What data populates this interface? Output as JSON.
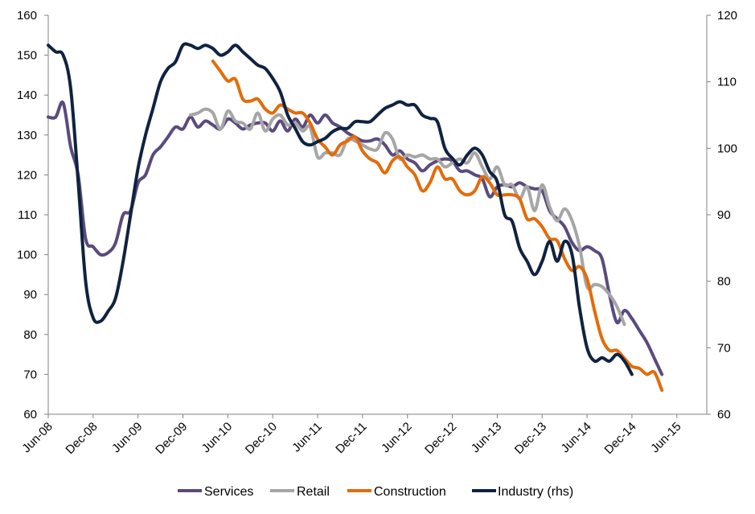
{
  "chart_data": {
    "type": "line",
    "x_tick_labels": [
      "Jun-08",
      "Dec-08",
      "Jun-09",
      "Dec-09",
      "Jun-10",
      "Dec-10",
      "Jun-11",
      "Dec-11",
      "Jun-12",
      "Dec-12",
      "Jun-13",
      "Dec-13",
      "Jun-14",
      "Dec-14",
      "Jun-15"
    ],
    "x_range": [
      "Jun-08",
      "Oct-15"
    ],
    "y_left": {
      "min": 60,
      "max": 160,
      "step": 10,
      "ticks": [
        "60",
        "70",
        "80",
        "90",
        "100",
        "110",
        "120",
        "130",
        "140",
        "150",
        "160"
      ]
    },
    "y_right": {
      "min": 60,
      "max": 120,
      "step": 10,
      "ticks": [
        "60",
        "70",
        "80",
        "90",
        "100",
        "110",
        "120"
      ]
    },
    "grid": false,
    "legend_position": "bottom",
    "series": [
      {
        "name": "Services",
        "color": "#5b4a7e",
        "axis": "left",
        "points": [
          [
            "Jun-08",
            134.5
          ],
          [
            "Jul-08",
            134.5
          ],
          [
            "Aug-08",
            138
          ],
          [
            "Sep-08",
            127
          ],
          [
            "Oct-08",
            120
          ],
          [
            "Nov-08",
            104
          ],
          [
            "Dec-08",
            102
          ],
          [
            "Jan-09",
            100
          ],
          [
            "Feb-09",
            100.5
          ],
          [
            "Mar-09",
            103
          ],
          [
            "Apr-09",
            110
          ],
          [
            "May-09",
            111
          ],
          [
            "Jun-09",
            118
          ],
          [
            "Jul-09",
            120
          ],
          [
            "Aug-09",
            125
          ],
          [
            "Sep-09",
            127
          ],
          [
            "Oct-09",
            129.5
          ],
          [
            "Nov-09",
            132
          ],
          [
            "Dec-09",
            131.5
          ],
          [
            "Jan-10",
            134.5
          ],
          [
            "Feb-10",
            132
          ],
          [
            "Mar-10",
            133.5
          ],
          [
            "Apr-10",
            132.5
          ],
          [
            "May-10",
            131.5
          ],
          [
            "Jun-10",
            134
          ],
          [
            "Jul-10",
            133
          ],
          [
            "Aug-10",
            131.5
          ],
          [
            "Sep-10",
            132.5
          ],
          [
            "Oct-10",
            133
          ],
          [
            "Nov-10",
            133
          ],
          [
            "Dec-10",
            131
          ],
          [
            "Jan-11",
            133.5
          ],
          [
            "Feb-11",
            131
          ],
          [
            "Mar-11",
            134
          ],
          [
            "Apr-11",
            132
          ],
          [
            "May-11",
            135
          ],
          [
            "Jun-11",
            133
          ],
          [
            "Jul-11",
            135
          ],
          [
            "Aug-11",
            133
          ],
          [
            "Sep-11",
            132
          ],
          [
            "Oct-11",
            130.5
          ],
          [
            "Nov-11",
            129.5
          ],
          [
            "Dec-11",
            128.5
          ],
          [
            "Jan-12",
            128.5
          ],
          [
            "Feb-12",
            129
          ],
          [
            "Mar-12",
            127.5
          ],
          [
            "Apr-12",
            125
          ],
          [
            "May-12",
            126
          ],
          [
            "Jun-12",
            124
          ],
          [
            "Jul-12",
            123
          ],
          [
            "Aug-12",
            121
          ],
          [
            "Sep-12",
            122.5
          ],
          [
            "Oct-12",
            123.5
          ],
          [
            "Nov-12",
            124
          ],
          [
            "Dec-12",
            123.5
          ],
          [
            "Jan-13",
            121
          ],
          [
            "Feb-13",
            121
          ],
          [
            "Mar-13",
            120
          ],
          [
            "Apr-13",
            119
          ],
          [
            "May-13",
            114.5
          ],
          [
            "Jun-13",
            117
          ],
          [
            "Jul-13",
            117.5
          ],
          [
            "Aug-13",
            117
          ],
          [
            "Sep-13",
            118
          ],
          [
            "Oct-13",
            117
          ],
          [
            "Nov-13",
            116.5
          ],
          [
            "Dec-13",
            116
          ],
          [
            "Jan-14",
            111
          ],
          [
            "Feb-14",
            109
          ],
          [
            "Mar-14",
            107
          ],
          [
            "Apr-14",
            103
          ],
          [
            "May-14",
            101
          ],
          [
            "Jun-14",
            102
          ],
          [
            "Jul-14",
            101
          ],
          [
            "Aug-14",
            99
          ],
          [
            "Sep-14",
            90
          ],
          [
            "Oct-14",
            83
          ],
          [
            "Nov-14",
            86
          ],
          [
            "Dec-14",
            84
          ],
          [
            "Jan-15",
            81
          ],
          [
            "Feb-15",
            78
          ],
          [
            "Mar-15",
            74
          ],
          [
            "Apr-15",
            70
          ]
        ]
      },
      {
        "name": "Retail",
        "color": "#a6a6a6",
        "axis": "left",
        "points": [
          [
            "Jan-10",
            135
          ],
          [
            "Feb-10",
            135.5
          ],
          [
            "Mar-10",
            136.5
          ],
          [
            "Apr-10",
            135.5
          ],
          [
            "May-10",
            131.5
          ],
          [
            "Jun-10",
            136
          ],
          [
            "Jul-10",
            133.5
          ],
          [
            "Aug-10",
            133
          ],
          [
            "Sep-10",
            131.5
          ],
          [
            "Oct-10",
            135.5
          ],
          [
            "Nov-10",
            131
          ],
          [
            "Dec-10",
            134
          ],
          [
            "Jan-11",
            135
          ],
          [
            "Feb-11",
            132.5
          ],
          [
            "Mar-11",
            133
          ],
          [
            "Apr-11",
            131
          ],
          [
            "May-11",
            132
          ],
          [
            "Jun-11",
            124.5
          ],
          [
            "Jul-11",
            125.5
          ],
          [
            "Aug-11",
            125.5
          ],
          [
            "Sep-11",
            125
          ],
          [
            "Oct-11",
            129
          ],
          [
            "Nov-11",
            128.5
          ],
          [
            "Dec-11",
            127.5
          ],
          [
            "Jan-12",
            126.5
          ],
          [
            "Feb-12",
            126.5
          ],
          [
            "Mar-12",
            130.5
          ],
          [
            "Apr-12",
            129
          ],
          [
            "May-12",
            124
          ],
          [
            "Jun-12",
            125
          ],
          [
            "Jul-12",
            124.5
          ],
          [
            "Aug-12",
            125
          ],
          [
            "Sep-12",
            124
          ],
          [
            "Oct-12",
            124
          ],
          [
            "Nov-12",
            122
          ],
          [
            "Dec-12",
            123
          ],
          [
            "Jan-13",
            124
          ],
          [
            "Feb-13",
            123
          ],
          [
            "Mar-13",
            125.5
          ],
          [
            "Apr-13",
            122
          ],
          [
            "May-13",
            119
          ],
          [
            "Jun-13",
            122
          ],
          [
            "Jul-13",
            117.5
          ],
          [
            "Aug-13",
            117.5
          ],
          [
            "Sep-13",
            114
          ],
          [
            "Oct-13",
            117
          ],
          [
            "Nov-13",
            111
          ],
          [
            "Dec-13",
            117.5
          ],
          [
            "Jan-14",
            112
          ],
          [
            "Feb-14",
            108.5
          ],
          [
            "Mar-14",
            111.5
          ],
          [
            "Apr-14",
            108.5
          ],
          [
            "May-14",
            102
          ],
          [
            "Jun-14",
            92
          ],
          [
            "Jul-14",
            92.5
          ],
          [
            "Aug-14",
            92
          ],
          [
            "Sep-14",
            90
          ],
          [
            "Oct-14",
            87
          ],
          [
            "Nov-14",
            82.5
          ]
        ]
      },
      {
        "name": "Construction",
        "color": "#e36c0a",
        "axis": "left",
        "points": [
          [
            "Apr-10",
            148.5
          ],
          [
            "May-10",
            146
          ],
          [
            "Jun-10",
            143.5
          ],
          [
            "Jul-10",
            144
          ],
          [
            "Aug-10",
            139
          ],
          [
            "Sep-10",
            138.5
          ],
          [
            "Oct-10",
            139
          ],
          [
            "Nov-10",
            136.5
          ],
          [
            "Dec-10",
            135.5
          ],
          [
            "Jan-11",
            137.5
          ],
          [
            "Feb-11",
            136.5
          ],
          [
            "Mar-11",
            135.5
          ],
          [
            "Apr-11",
            135.5
          ],
          [
            "May-11",
            133
          ],
          [
            "Jun-11",
            129
          ],
          [
            "Jul-11",
            127
          ],
          [
            "Aug-11",
            125
          ],
          [
            "Sep-11",
            127.5
          ],
          [
            "Oct-11",
            128.5
          ],
          [
            "Nov-11",
            129.5
          ],
          [
            "Dec-11",
            126
          ],
          [
            "Jan-12",
            124
          ],
          [
            "Feb-12",
            123
          ],
          [
            "Mar-12",
            120.5
          ],
          [
            "Apr-12",
            123.5
          ],
          [
            "May-12",
            124.5
          ],
          [
            "Jun-12",
            122
          ],
          [
            "Jul-12",
            120
          ],
          [
            "Aug-12",
            116
          ],
          [
            "Sep-12",
            118
          ],
          [
            "Oct-12",
            122
          ],
          [
            "Nov-12",
            119
          ],
          [
            "Dec-12",
            119
          ],
          [
            "Jan-13",
            116
          ],
          [
            "Feb-13",
            115
          ],
          [
            "Mar-13",
            116
          ],
          [
            "Apr-13",
            119.5
          ],
          [
            "May-13",
            118
          ],
          [
            "Jun-13",
            115
          ],
          [
            "Jul-13",
            115
          ],
          [
            "Aug-13",
            115
          ],
          [
            "Sep-13",
            114
          ],
          [
            "Oct-13",
            109
          ],
          [
            "Nov-13",
            109
          ],
          [
            "Dec-13",
            107
          ],
          [
            "Jan-14",
            104
          ],
          [
            "Feb-14",
            103.5
          ],
          [
            "Mar-14",
            99
          ],
          [
            "Apr-14",
            96
          ],
          [
            "May-14",
            97
          ],
          [
            "Jun-14",
            94
          ],
          [
            "Jul-14",
            86
          ],
          [
            "Aug-14",
            79
          ],
          [
            "Sep-14",
            76
          ],
          [
            "Oct-14",
            76
          ],
          [
            "Nov-14",
            74
          ],
          [
            "Dec-14",
            72
          ],
          [
            "Jan-15",
            71.5
          ],
          [
            "Feb-15",
            70
          ],
          [
            "Mar-15",
            70.5
          ],
          [
            "Apr-15",
            66
          ]
        ]
      },
      {
        "name": "Industry (rhs)",
        "color": "#0f2340",
        "axis": "right",
        "points": [
          [
            "Jun-08",
            115.5
          ],
          [
            "Jul-08",
            114.5
          ],
          [
            "Aug-08",
            114
          ],
          [
            "Sep-08",
            109
          ],
          [
            "Oct-08",
            95
          ],
          [
            "Nov-08",
            80
          ],
          [
            "Dec-08",
            74.5
          ],
          [
            "Jan-09",
            74
          ],
          [
            "Feb-09",
            75.5
          ],
          [
            "Mar-09",
            77.5
          ],
          [
            "Apr-09",
            83
          ],
          [
            "May-09",
            90
          ],
          [
            "Jun-09",
            97
          ],
          [
            "Jul-09",
            102
          ],
          [
            "Aug-09",
            106
          ],
          [
            "Sep-09",
            110
          ],
          [
            "Oct-09",
            112
          ],
          [
            "Nov-09",
            113
          ],
          [
            "Dec-09",
            115.5
          ],
          [
            "Jan-10",
            115.5
          ],
          [
            "Feb-10",
            115
          ],
          [
            "Mar-10",
            115.5
          ],
          [
            "Apr-10",
            115
          ],
          [
            "May-10",
            114
          ],
          [
            "Jun-10",
            114.5
          ],
          [
            "Jul-10",
            115.5
          ],
          [
            "Aug-10",
            114.5
          ],
          [
            "Sep-10",
            113.5
          ],
          [
            "Oct-10",
            112.5
          ],
          [
            "Nov-10",
            112
          ],
          [
            "Dec-10",
            110.5
          ],
          [
            "Jan-11",
            108.5
          ],
          [
            "Feb-11",
            105
          ],
          [
            "Mar-11",
            103
          ],
          [
            "Apr-11",
            101
          ],
          [
            "May-11",
            100.5
          ],
          [
            "Jun-11",
            101
          ],
          [
            "Jul-11",
            101.5
          ],
          [
            "Aug-11",
            102.5
          ],
          [
            "Sep-11",
            103
          ],
          [
            "Oct-11",
            103
          ],
          [
            "Nov-11",
            104
          ],
          [
            "Dec-11",
            104
          ],
          [
            "Jan-12",
            104
          ],
          [
            "Feb-12",
            105
          ],
          [
            "Mar-12",
            106
          ],
          [
            "Apr-12",
            106.5
          ],
          [
            "May-12",
            107
          ],
          [
            "Jun-12",
            106.5
          ],
          [
            "Jul-12",
            106.5
          ],
          [
            "Aug-12",
            105
          ],
          [
            "Sep-12",
            104.5
          ],
          [
            "Oct-12",
            104
          ],
          [
            "Nov-12",
            100
          ],
          [
            "Dec-12",
            98.5
          ],
          [
            "Jan-13",
            97.5
          ],
          [
            "Feb-13",
            99
          ],
          [
            "Mar-13",
            100
          ],
          [
            "Apr-13",
            99
          ],
          [
            "May-13",
            96.5
          ],
          [
            "Jun-13",
            95
          ],
          [
            "Jul-13",
            90
          ],
          [
            "Aug-13",
            89
          ],
          [
            "Sep-13",
            85
          ],
          [
            "Oct-13",
            83
          ],
          [
            "Nov-13",
            81
          ],
          [
            "Dec-13",
            83
          ],
          [
            "Jan-14",
            86
          ],
          [
            "Feb-14",
            83
          ],
          [
            "Mar-14",
            86
          ],
          [
            "Apr-14",
            84
          ],
          [
            "May-14",
            76
          ],
          [
            "Jun-14",
            70
          ],
          [
            "Jul-14",
            68
          ],
          [
            "Aug-14",
            68.5
          ],
          [
            "Sep-14",
            68
          ],
          [
            "Oct-14",
            69
          ],
          [
            "Nov-14",
            68
          ],
          [
            "Dec-14",
            66
          ]
        ]
      }
    ]
  }
}
